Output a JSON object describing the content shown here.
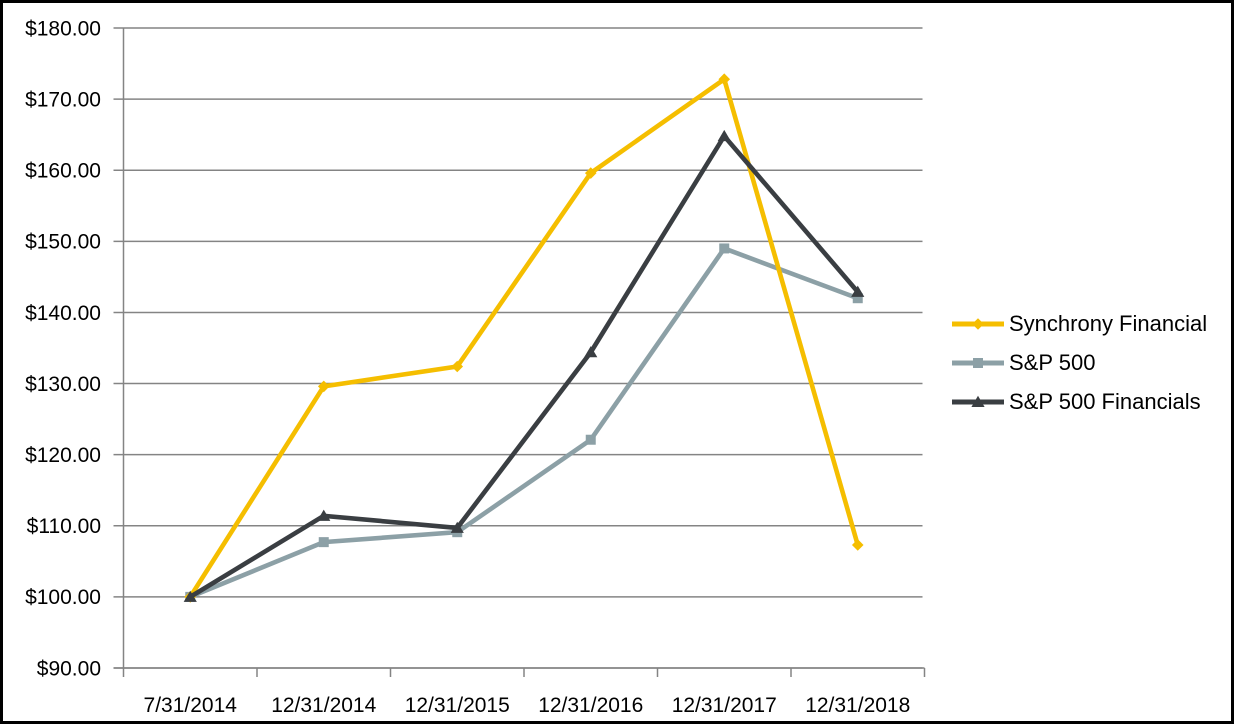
{
  "chart_data": {
    "type": "line",
    "title": "",
    "categories": [
      "7/31/2014",
      "12/31/2014",
      "12/31/2015",
      "12/31/2016",
      "12/31/2017",
      "12/31/2018"
    ],
    "series": [
      {
        "name": "Synchrony Financial",
        "color": "#F5BE00",
        "marker": "diamond",
        "values": [
          100.0,
          129.6,
          132.4,
          159.6,
          172.8,
          107.3
        ]
      },
      {
        "name": "S&P 500",
        "color": "#8CA0A6",
        "marker": "square",
        "values": [
          100.0,
          107.7,
          109.1,
          122.1,
          149.0,
          142.0
        ]
      },
      {
        "name": "S&P 500 Financials",
        "color": "#3A3E42",
        "marker": "triangle",
        "values": [
          100.0,
          111.4,
          109.7,
          134.4,
          164.8,
          142.9
        ]
      }
    ],
    "ylim": [
      90,
      180
    ],
    "ytick_step": 10,
    "y_tick_labels": [
      "$180.00",
      "$170.00",
      "$160.00",
      "$150.00",
      "$140.00",
      "$130.00",
      "$120.00",
      "$110.00",
      "$100.00",
      "$90.00"
    ],
    "xlabel": "",
    "ylabel": "",
    "grid": true,
    "legend_position": "right",
    "gridline_color": "#848484",
    "axis_color": "#848484",
    "text_color": "#000000",
    "background_color": "#FFFFFF",
    "border_color": "#000000"
  }
}
